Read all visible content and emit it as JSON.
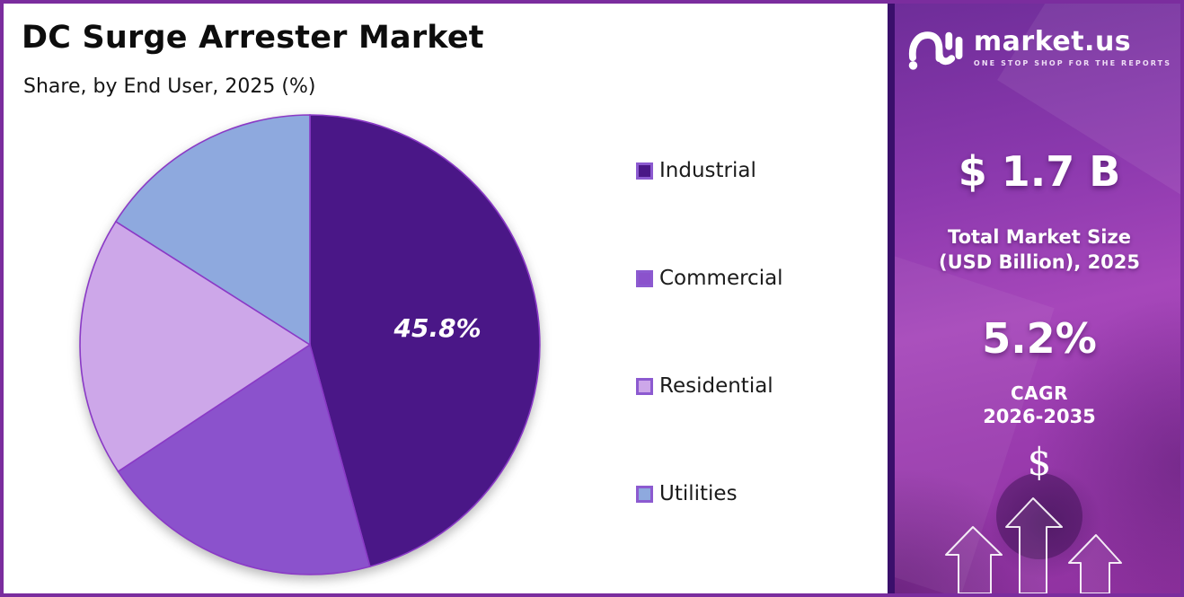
{
  "header": {
    "title": "DC Surge Arrester Market",
    "subtitle": "Share, by End User, 2025 (%)"
  },
  "chart_data": {
    "type": "pie",
    "title": "DC Surge Arrester Market",
    "subtitle": "Share, by End User, 2025 (%)",
    "unit": "%",
    "categories": [
      "Industrial",
      "Commercial",
      "Residential",
      "Utilities"
    ],
    "values": [
      45.8,
      19.9,
      18.3,
      16.0
    ],
    "colors": [
      "#4a1787",
      "#8b52cc",
      "#cda7e9",
      "#8ea9de"
    ],
    "slice_border_color": "#8a3ac6",
    "start_angle_deg": 0,
    "direction": "clockwise",
    "legend_position": "right",
    "data_label": {
      "text": "45.8%",
      "slice_index": 0
    }
  },
  "sidebar": {
    "logo": {
      "brand": "market.us",
      "tagline": "ONE STOP SHOP FOR THE REPORTS"
    },
    "market_size": {
      "value": "$ 1.7 B",
      "label_line1": "Total Market Size",
      "label_line2": "(USD Billion), 2025"
    },
    "cagr": {
      "value": "5.2%",
      "label": "CAGR",
      "period": "2026-2035"
    },
    "dollar_symbol": "$"
  },
  "colors": {
    "page_border": "#7b2d9e",
    "sidebar_separator": "#3a0f6b",
    "sidebar_purple": "#a647ba",
    "legend_swatch_border": "#8c5ad0",
    "text_dark": "#0d0d0d",
    "text_light": "#ffffff"
  }
}
